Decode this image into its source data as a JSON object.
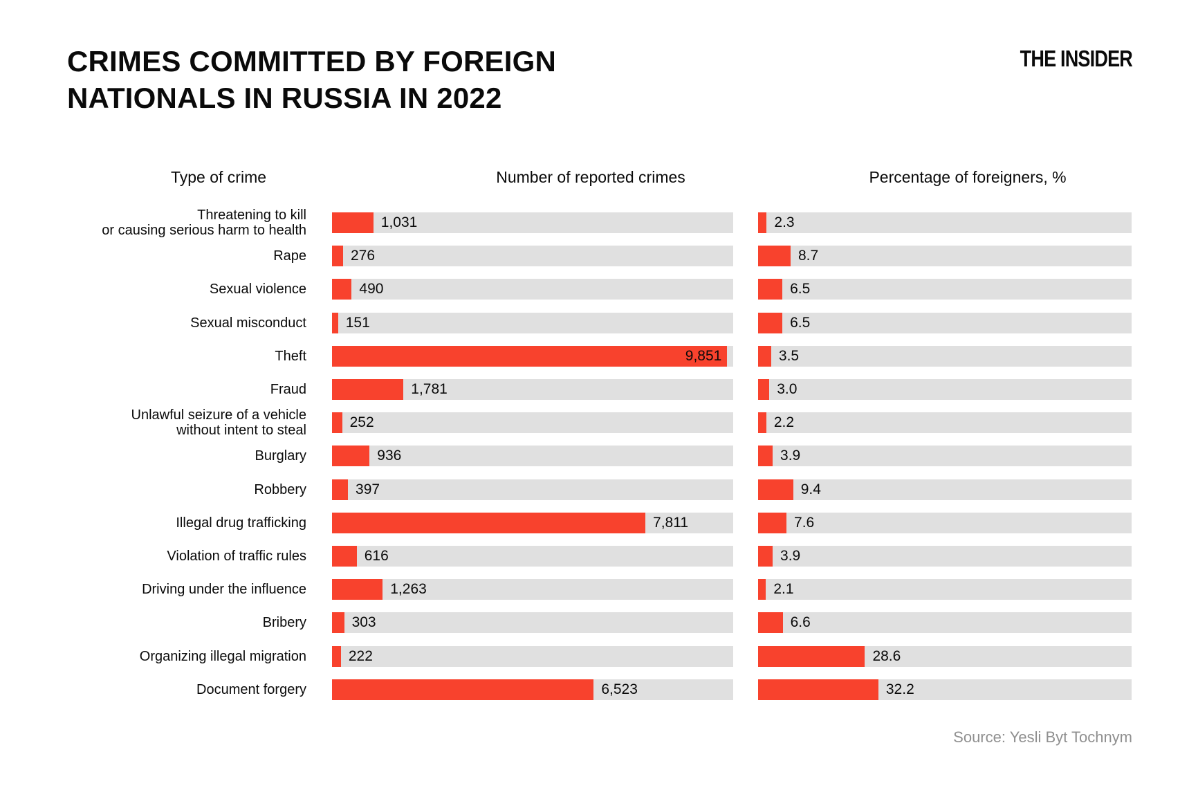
{
  "header": {
    "title_line1": "CRIMES COMMITTED BY FOREIGN",
    "title_line2": "NATIONALS IN RUSSIA IN 2022",
    "logo": "THE INSIDER"
  },
  "columns": {
    "crime": "Type of crime",
    "count": "Number of reported crimes",
    "pct": "Percentage of foreigners, %"
  },
  "source": "Source: Yesli Byt Tochnym",
  "colors": {
    "bar": "#f8422d",
    "track": "#e0e0e0",
    "source_text": "#8f8f8f"
  },
  "chart_data": {
    "type": "bar",
    "orientation": "horizontal",
    "title": "CRIMES COMMITTED BY FOREIGN NATIONALS IN RUSSIA IN 2022",
    "column_headers": [
      "Type of crime",
      "Number of reported crimes",
      "Percentage of foreigners, %"
    ],
    "count_axis_max": 10000,
    "pct_axis_max": 100,
    "grid": false,
    "legend": false,
    "rows": [
      {
        "crime_lines": [
          "Threatening to kill",
          "or causing serious harm to health"
        ],
        "count": 1031,
        "count_label": "1,031",
        "pct": 2.3,
        "pct_label": "2.3"
      },
      {
        "crime_lines": [
          "Rape"
        ],
        "count": 276,
        "count_label": "276",
        "pct": 8.7,
        "pct_label": "8.7"
      },
      {
        "crime_lines": [
          "Sexual violence"
        ],
        "count": 490,
        "count_label": "490",
        "pct": 6.5,
        "pct_label": "6.5"
      },
      {
        "crime_lines": [
          "Sexual misconduct"
        ],
        "count": 151,
        "count_label": "151",
        "pct": 6.5,
        "pct_label": "6.5"
      },
      {
        "crime_lines": [
          "Theft"
        ],
        "count": 9851,
        "count_label": "9,851",
        "pct": 3.5,
        "pct_label": "3.5"
      },
      {
        "crime_lines": [
          "Fraud"
        ],
        "count": 1781,
        "count_label": "1,781",
        "pct": 3.0,
        "pct_label": "3.0"
      },
      {
        "crime_lines": [
          "Unlawful seizure of a vehicle",
          "without intent to steal"
        ],
        "count": 252,
        "count_label": "252",
        "pct": 2.2,
        "pct_label": "2.2"
      },
      {
        "crime_lines": [
          "Burglary"
        ],
        "count": 936,
        "count_label": "936",
        "pct": 3.9,
        "pct_label": "3.9"
      },
      {
        "crime_lines": [
          "Robbery"
        ],
        "count": 397,
        "count_label": "397",
        "pct": 9.4,
        "pct_label": "9.4"
      },
      {
        "crime_lines": [
          "Illegal drug trafficking"
        ],
        "count": 7811,
        "count_label": "7,811",
        "pct": 7.6,
        "pct_label": "7.6"
      },
      {
        "crime_lines": [
          "Violation of traffic rules"
        ],
        "count": 616,
        "count_label": "616",
        "pct": 3.9,
        "pct_label": "3.9"
      },
      {
        "crime_lines": [
          "Driving under the influence"
        ],
        "count": 1263,
        "count_label": "1,263",
        "pct": 2.1,
        "pct_label": "2.1"
      },
      {
        "crime_lines": [
          "Bribery"
        ],
        "count": 303,
        "count_label": "303",
        "pct": 6.6,
        "pct_label": "6.6"
      },
      {
        "crime_lines": [
          "Organizing illegal migration"
        ],
        "count": 222,
        "count_label": "222",
        "pct": 28.6,
        "pct_label": "28.6"
      },
      {
        "crime_lines": [
          "Document forgery"
        ],
        "count": 6523,
        "count_label": "6,523",
        "pct": 32.2,
        "pct_label": "32.2"
      }
    ]
  }
}
